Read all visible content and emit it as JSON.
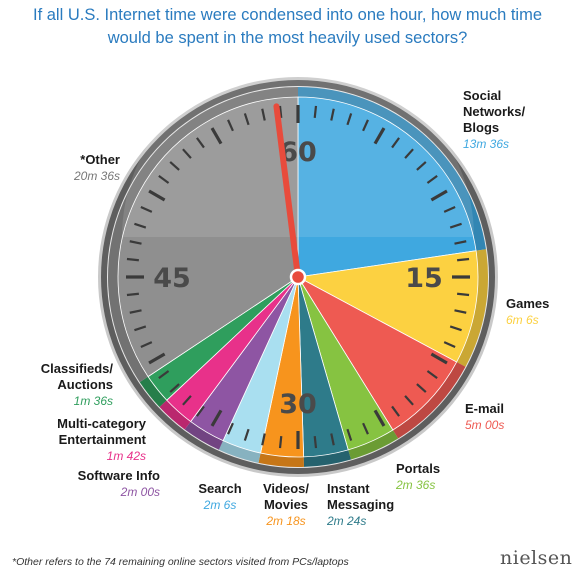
{
  "title_lines": [
    "If all U.S. Internet time were condensed into one hour, how much time",
    "would be spent in the most heavily used sectors?"
  ],
  "footnote": "*Other refers to the 74 remaining online sectors visited from PCs/laptops",
  "logo_text": "nielsen",
  "chart_data": {
    "type": "pie",
    "dial_numbers": [
      "60",
      "15",
      "30",
      "45"
    ],
    "unit_total_minutes": 60,
    "slices": [
      {
        "label": [
          "Social",
          "Networks/",
          "Blogs"
        ],
        "value_text": "13m 36s",
        "minutes": 13.6,
        "color": "#3fa8e0"
      },
      {
        "label": [
          "Games"
        ],
        "value_text": "6m 6s",
        "minutes": 6.1,
        "color": "#fcd141"
      },
      {
        "label": [
          "E-mail"
        ],
        "value_text": "5m 00s",
        "minutes": 5.0,
        "color": "#ee5a52"
      },
      {
        "label": [
          "Portals"
        ],
        "value_text": "2m 36s",
        "minutes": 2.6,
        "color": "#86c341"
      },
      {
        "label": [
          "Instant",
          "Messaging"
        ],
        "value_text": "2m 24s",
        "minutes": 2.4,
        "color": "#2e7b8a"
      },
      {
        "label": [
          "Videos/",
          "Movies"
        ],
        "value_text": "2m 18s",
        "minutes": 2.3,
        "color": "#f7941d"
      },
      {
        "label": [
          "Search"
        ],
        "value_text": "2m 6s",
        "minutes": 2.1,
        "color": "#a9dff0"
      },
      {
        "label": [
          "Software Info"
        ],
        "value_text": "2m 00s",
        "minutes": 2.0,
        "color": "#8e55a3"
      },
      {
        "label": [
          "Multi-category",
          "Entertainment"
        ],
        "value_text": "1m 42s",
        "minutes": 1.7,
        "color": "#e8318a"
      },
      {
        "label": [
          "Classifieds/",
          "Auctions"
        ],
        "value_text": "1m 36s",
        "minutes": 1.6,
        "color": "#2f9e5d"
      },
      {
        "label": [
          "*Other"
        ],
        "value_text": "20m 36s",
        "minutes": 20.6,
        "color": "#8f8f8f"
      }
    ]
  }
}
